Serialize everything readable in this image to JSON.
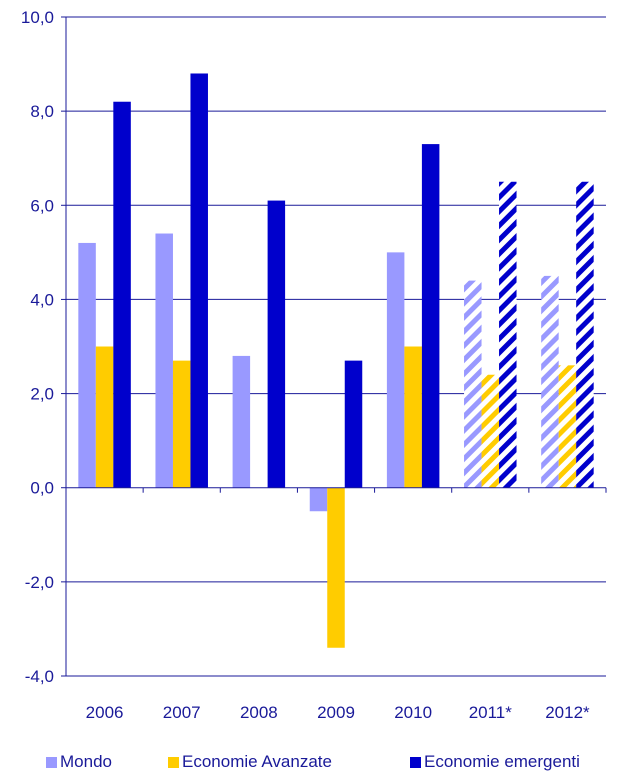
{
  "chart_data": {
    "type": "bar",
    "title": "",
    "xlabel": "",
    "ylabel": "",
    "categories": [
      "2006",
      "2007",
      "2008",
      "2009",
      "2010",
      "2011*",
      "2012*"
    ],
    "projected_categories": [
      "2011*",
      "2012*"
    ],
    "ylim": [
      -4.0,
      10.0
    ],
    "yticks": [
      -4.0,
      -2.0,
      0.0,
      2.0,
      4.0,
      6.0,
      8.0,
      10.0
    ],
    "ytick_labels": [
      "-4,0",
      "-2,0",
      "0,0",
      "2,0",
      "4,0",
      "6,0",
      "8,0",
      "10,0"
    ],
    "grid": true,
    "legend_position": "bottom",
    "series": [
      {
        "name": "Mondo",
        "color": "#9999ff",
        "values": [
          5.2,
          5.4,
          2.8,
          -0.5,
          5.0,
          4.4,
          4.5
        ]
      },
      {
        "name": "Economie Avanzate",
        "color": "#ffcc00",
        "values": [
          3.0,
          2.7,
          0.0,
          -3.4,
          3.0,
          2.4,
          2.6
        ]
      },
      {
        "name": "Economie emergenti",
        "color": "#0000cc",
        "values": [
          8.2,
          8.8,
          6.1,
          2.7,
          7.3,
          6.5,
          6.5
        ]
      }
    ]
  }
}
